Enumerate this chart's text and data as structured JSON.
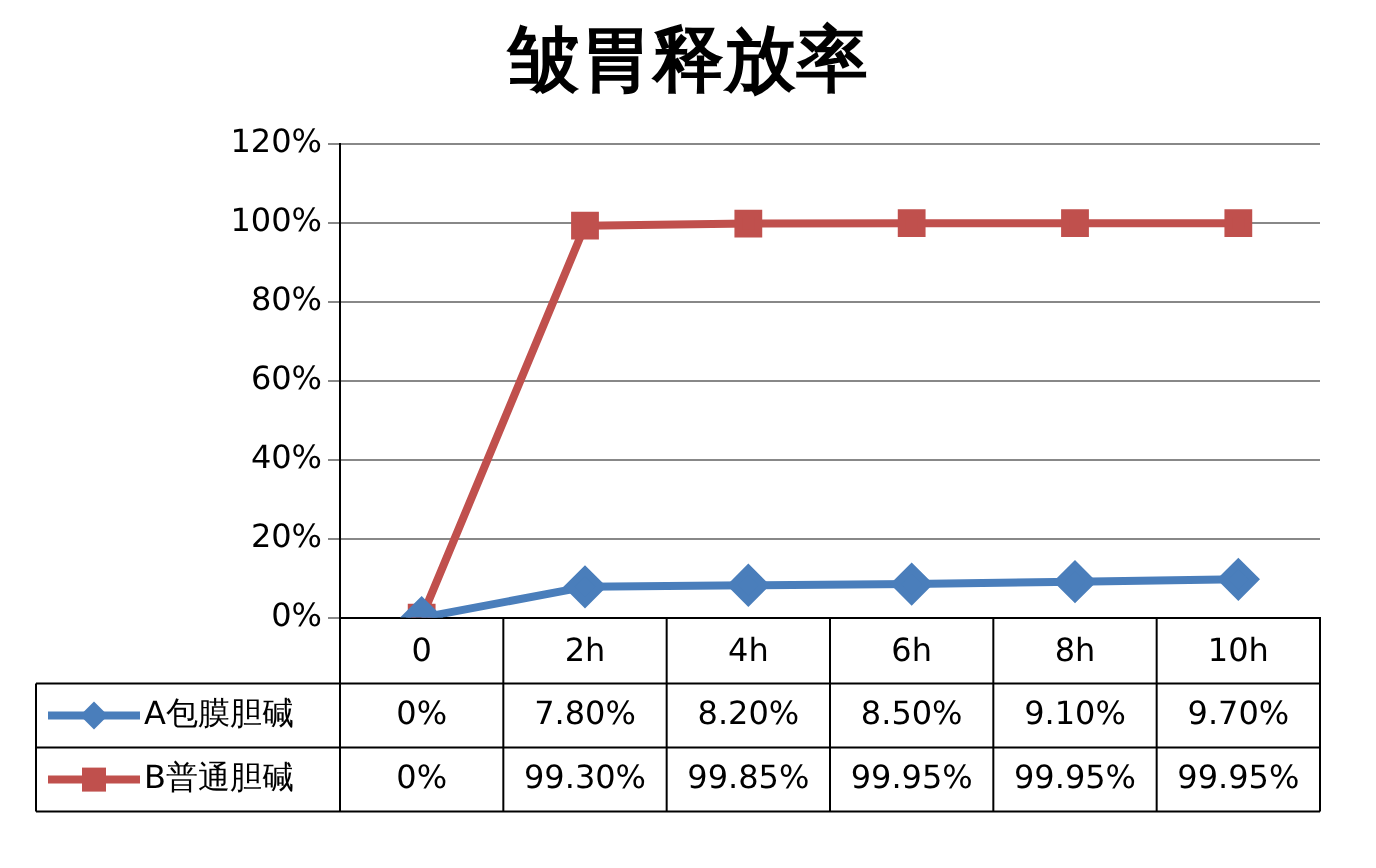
{
  "chart_data": {
    "type": "line",
    "title": "皱胃释放率",
    "categories": [
      "0",
      "2h",
      "4h",
      "6h",
      "8h",
      "10h"
    ],
    "series": [
      {
        "name": "A包膜胆碱",
        "color": "#4a7ebb",
        "marker": "diamond",
        "values": [
          0,
          7.8,
          8.2,
          8.5,
          9.1,
          9.7
        ],
        "value_labels": [
          "0%",
          "7.80%",
          "8.20%",
          "8.50%",
          "9.10%",
          "9.70%"
        ]
      },
      {
        "name": "B普通胆碱",
        "color": "#c0504d",
        "marker": "square",
        "values": [
          0,
          99.3,
          99.85,
          99.95,
          99.95,
          99.95
        ],
        "value_labels": [
          "0%",
          "99.30%",
          "99.85%",
          "99.95%",
          "99.95%",
          "99.95%"
        ]
      }
    ],
    "ylim": [
      0,
      120
    ],
    "yticks": [
      {
        "value": 0,
        "label": "0%"
      },
      {
        "value": 20,
        "label": "20%"
      },
      {
        "value": 40,
        "label": "40%"
      },
      {
        "value": 60,
        "label": "60%"
      },
      {
        "value": 80,
        "label": "80%"
      },
      {
        "value": 100,
        "label": "100%"
      },
      {
        "value": 120,
        "label": "120%"
      }
    ],
    "grid": "y",
    "legend": "bottom left"
  }
}
